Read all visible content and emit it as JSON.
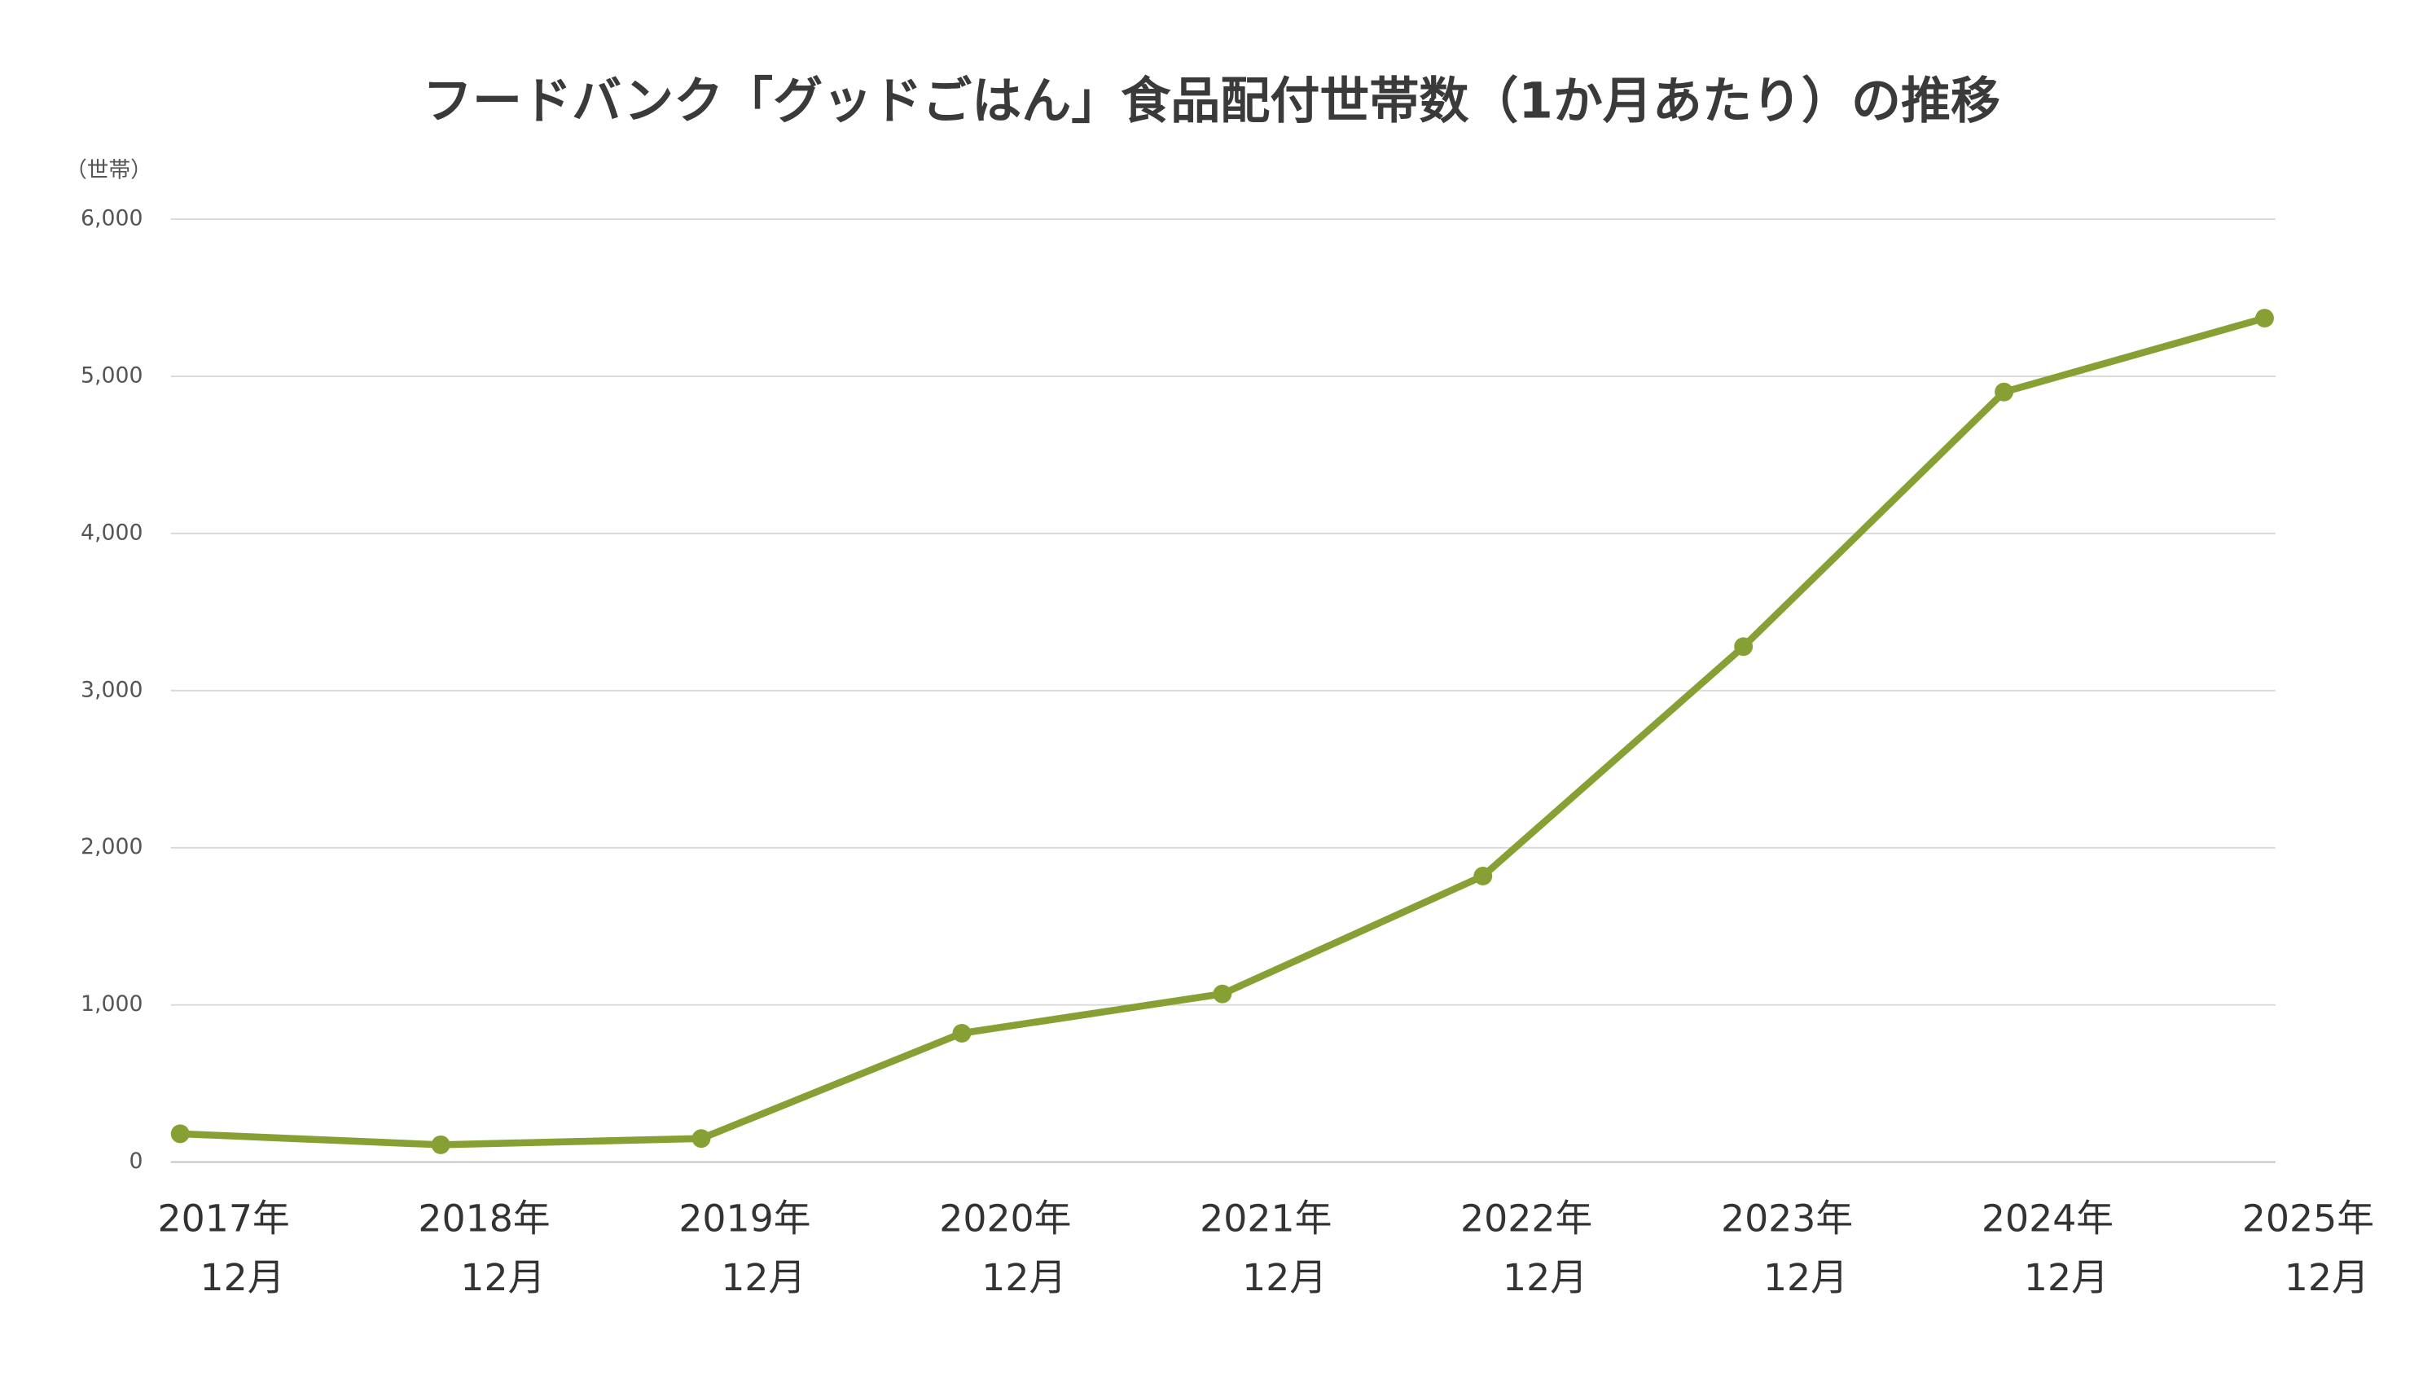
{
  "chart_data": {
    "type": "line",
    "title": "フードバンク「グッドごはん」食品配付世帯数（1か月あたり）の推移",
    "y_label": "（世帯）",
    "categories": [
      [
        "2017年",
        "12月"
      ],
      [
        "2018年",
        "12月"
      ],
      [
        "2019年",
        "12月"
      ],
      [
        "2020年",
        "12月"
      ],
      [
        "2021年",
        "12月"
      ],
      [
        "2022年",
        "12月"
      ],
      [
        "2023年",
        "12月"
      ],
      [
        "2024年",
        "12月"
      ],
      [
        "2025年",
        "12月"
      ]
    ],
    "series": [
      {
        "name": "食品配付世帯数",
        "color": "#86a033",
        "values": [
          180,
          110,
          150,
          820,
          1070,
          1820,
          3280,
          4900,
          5370
        ]
      }
    ],
    "ylim": [
      0,
      6000
    ],
    "yticks": [
      0,
      {
        "value": 1000,
        "label": "1,000"
      },
      {
        "value": 2000,
        "label": "2,000"
      },
      {
        "value": 3000,
        "label": "3,000"
      },
      {
        "value": 4000,
        "label": "4,000"
      },
      {
        "value": 5000,
        "label": "5,000"
      },
      {
        "value": 6000,
        "label": "6,000"
      }
    ],
    "grid": true
  }
}
